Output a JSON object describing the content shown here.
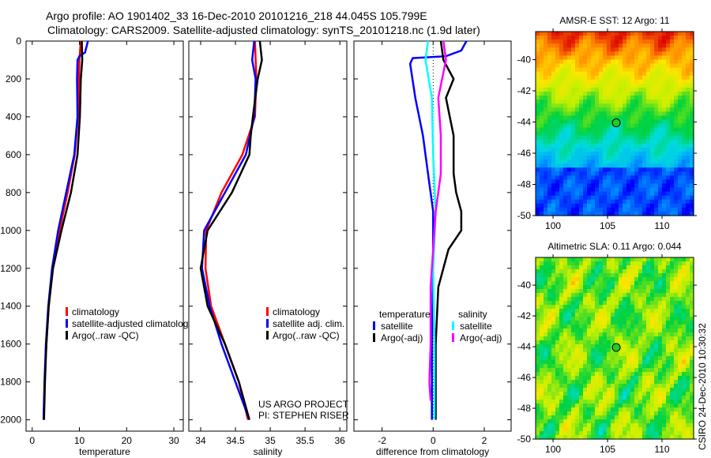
{
  "title": {
    "line1": "Argo profile: AO 1901402_33 16-Dec-2010 20101216_218 44.045S 105.799E",
    "line2": "Climatology: CARS2009. Satellite-adjusted climatology: synTS_20101218.nc (1.9d later)"
  },
  "credit": "CSIRO 24-Dec-2010 10:30:32",
  "project": {
    "line1": "US ARGO PROJECT",
    "line2": "PI: STEPHEN RISER"
  },
  "chart_data": [
    {
      "type": "line",
      "id": "temperature",
      "xlabel": "temperature",
      "ylabel": "",
      "xlim": [
        -1.3,
        32
      ],
      "ylim": [
        2060,
        0
      ],
      "xticks": [
        "0",
        "10",
        "20",
        "30"
      ],
      "yticks": [
        "0",
        "200",
        "400",
        "600",
        "800",
        "1000",
        "1200",
        "1400",
        "1600",
        "1800",
        "2000"
      ],
      "legend": [
        "climatology",
        "satellite-adjusted climatology",
        "Argo(..raw -QC)"
      ],
      "series": [
        {
          "name": "climatology",
          "color": "#ff0000",
          "depth": [
            0,
            100,
            200,
            400,
            600,
            800,
            1000,
            1200,
            1400,
            1600,
            1700
          ],
          "values": [
            10.3,
            10.0,
            9.9,
            9.7,
            9.0,
            7.5,
            5.8,
            4.3,
            3.5,
            3.0,
            2.8
          ]
        },
        {
          "name": "satellite-adjusted climatology",
          "color": "#0000ff",
          "depth": [
            0,
            60,
            80,
            100,
            200,
            400,
            600,
            800,
            1000,
            1200,
            1400,
            1600,
            1800,
            2000
          ],
          "values": [
            11.8,
            11.2,
            10.0,
            9.6,
            9.5,
            9.6,
            8.9,
            7.2,
            5.5,
            4.2,
            3.4,
            2.9,
            2.6,
            2.4
          ]
        },
        {
          "name": "Argo(..raw -QC)",
          "color": "#000000",
          "depth": [
            0,
            100,
            200,
            400,
            600,
            800,
            1000,
            1200,
            1400,
            1600,
            1800,
            2000
          ],
          "values": [
            10.5,
            10.6,
            10.3,
            10.1,
            9.6,
            8.2,
            6.2,
            4.4,
            3.5,
            3.0,
            2.7,
            2.5
          ]
        }
      ]
    },
    {
      "type": "line",
      "id": "salinity",
      "xlabel": "salinity",
      "xlim": [
        33.83,
        36.1
      ],
      "ylim": [
        2060,
        0
      ],
      "xticks": [
        "34",
        "34.5",
        "35",
        "35.5",
        "36"
      ],
      "legend": [
        "climatology",
        "satellite adj. clim.",
        "Argo(..raw -QC)"
      ],
      "series": [
        {
          "name": "climatology",
          "color": "#ff0000",
          "depth": [
            0,
            200,
            400,
            600,
            800,
            1000,
            1200,
            1400,
            1600,
            1800,
            2000
          ],
          "values": [
            34.78,
            34.8,
            34.78,
            34.6,
            34.3,
            34.08,
            34.07,
            34.15,
            34.35,
            34.55,
            34.68
          ]
        },
        {
          "name": "satellite adj. clim.",
          "color": "#0000ff",
          "depth": [
            0,
            100,
            200,
            400,
            600,
            800,
            1000,
            1200,
            1400,
            1600,
            1800,
            2000
          ],
          "values": [
            34.77,
            34.74,
            34.79,
            34.77,
            34.65,
            34.35,
            34.05,
            34.02,
            34.13,
            34.3,
            34.5,
            34.7
          ]
        },
        {
          "name": "Argo(..raw -QC)",
          "color": "#000000",
          "depth": [
            0,
            100,
            200,
            400,
            500,
            600,
            800,
            1000,
            1200,
            1400,
            1600,
            1800,
            2000
          ],
          "values": [
            34.85,
            34.88,
            34.82,
            34.75,
            34.72,
            34.7,
            34.45,
            34.1,
            34.0,
            34.1,
            34.35,
            34.55,
            34.7
          ]
        }
      ]
    },
    {
      "type": "line",
      "id": "difference",
      "xlabel": "difference from climatology",
      "xlim": [
        -3.1,
        3.05
      ],
      "ylim": [
        2060,
        0
      ],
      "xticks": [
        "-2",
        "0",
        "2"
      ],
      "legend_headers": [
        "temperature",
        "salinity"
      ],
      "legend": [
        "satellite",
        "Argo(-adj)",
        "satellite",
        "Argo(-adj)"
      ],
      "series": [
        {
          "name": "temperature satellite",
          "color": "#0000ff",
          "depth": [
            0,
            50,
            80,
            90,
            120,
            300,
            500,
            700,
            900,
            1200,
            1600,
            2000
          ],
          "values": [
            1.3,
            1.1,
            0.5,
            -0.8,
            -0.9,
            -0.7,
            -0.4,
            -0.2,
            0.0,
            0.0,
            -0.05,
            -0.05
          ]
        },
        {
          "name": "temperature Argo(-adj)",
          "color": "#000000",
          "depth": [
            0,
            100,
            200,
            300,
            500,
            700,
            800,
            900,
            1000,
            1100,
            1300,
            1600,
            2000
          ],
          "values": [
            0.3,
            0.4,
            0.8,
            0.5,
            0.8,
            0.8,
            0.9,
            1.1,
            1.1,
            0.6,
            0.2,
            0.1,
            0.1
          ]
        },
        {
          "name": "salinity satellite",
          "color": "#00ffff",
          "depth": [
            0,
            100,
            300,
            600,
            900,
            1200,
            1600,
            2000
          ],
          "values": [
            -0.2,
            -0.3,
            -0.05,
            0.0,
            0.1,
            0.0,
            0.05,
            0.05
          ]
        },
        {
          "name": "salinity Argo(-adj)",
          "color": "#ff00ff",
          "depth": [
            0,
            100,
            300,
            500,
            700,
            900,
            1100,
            1300,
            1600,
            1800,
            1900
          ],
          "values": [
            0.4,
            0.5,
            0.2,
            0.3,
            0.3,
            0.1,
            0.0,
            -0.1,
            -0.1,
            -0.15,
            -0.1
          ]
        }
      ]
    },
    {
      "type": "heatmap",
      "id": "sst",
      "title": "AMSR-E SST: 12 Argo: 11",
      "xlim": [
        98.4,
        112.9
      ],
      "ylim": [
        -50,
        -38.2
      ],
      "xticks": [
        "100",
        "105",
        "110"
      ],
      "yticks": [
        "-40",
        "-42",
        "-44",
        "-46",
        "-48",
        "-50"
      ],
      "marker": {
        "lon": 105.8,
        "lat": -44.05
      }
    },
    {
      "type": "heatmap",
      "id": "sla",
      "title": "Altimetric SLA: 0.11 Argo: 0.044",
      "xlim": [
        98.4,
        112.9
      ],
      "ylim": [
        -50,
        -38.2
      ],
      "xticks": [
        "100",
        "105",
        "110"
      ],
      "yticks": [
        "-40",
        "-42",
        "-44",
        "-46",
        "-48",
        "-50"
      ],
      "marker": {
        "lon": 105.8,
        "lat": -44.05
      }
    }
  ]
}
